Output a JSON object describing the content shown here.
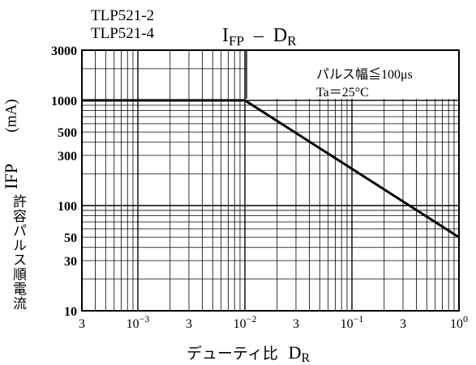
{
  "header": {
    "part_numbers": [
      "TLP521-2",
      "TLP521-4"
    ],
    "title_main": "I",
    "title_main_sub": "FP",
    "title_sep": "–",
    "title_var": "D",
    "title_var_sub": "R"
  },
  "chart_data": {
    "type": "line",
    "title": "IFP – DR",
    "xlabel": "デューティ比",
    "xlabel_symbol": "D",
    "xlabel_symbol_sub": "R",
    "ylabel": "許容パルス順電流",
    "ylabel_symbol": "IFP",
    "ylabel_unit": "(mA)",
    "x_scale": "log",
    "y_scale": "log",
    "xlim": [
      0.0003,
      1
    ],
    "ylim": [
      10,
      3000
    ],
    "x_tick_values": [
      0.0003,
      0.001,
      0.003,
      0.01,
      0.03,
      0.1,
      0.3,
      1
    ],
    "x_tick_labels": [
      {
        "mantissa": "3",
        "exp": ""
      },
      {
        "mantissa": "10",
        "exp": "−3"
      },
      {
        "mantissa": "3",
        "exp": ""
      },
      {
        "mantissa": "10",
        "exp": "−2"
      },
      {
        "mantissa": "3",
        "exp": ""
      },
      {
        "mantissa": "10",
        "exp": "−1"
      },
      {
        "mantissa": "3",
        "exp": ""
      },
      {
        "mantissa": "10",
        "exp": "0"
      }
    ],
    "y_tick_values": [
      3000,
      1000,
      500,
      300,
      100,
      50,
      30,
      10
    ],
    "y_tick_labels": [
      "3000",
      "1000",
      "500",
      "300",
      "100",
      "50",
      "30",
      "10"
    ],
    "grid": true,
    "annotation_lines": [
      "パルス幅≦100μs",
      "Ta＝25°C"
    ],
    "annotation_position": "top-right",
    "series": [
      {
        "x": [
          0.0003,
          0.01,
          1
        ],
        "y": [
          1000,
          1000,
          50
        ]
      }
    ],
    "colors": {
      "line": "#000000",
      "grid": "#000000",
      "background": "#ffffff"
    }
  }
}
